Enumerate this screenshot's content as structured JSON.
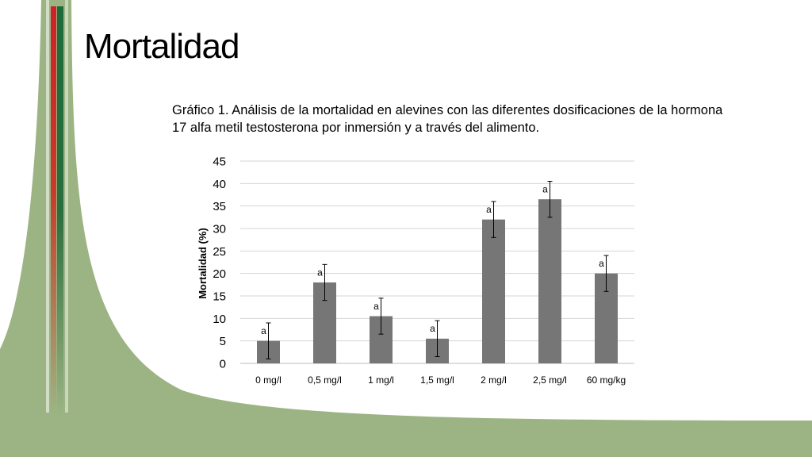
{
  "slide": {
    "title": "Mortalidad",
    "caption": "Gráfico 1. Análisis de la mortalidad en alevines con las diferentes dosificaciones de la hormona 17 alfa metil testosterona por inmersión y a través del alimento."
  },
  "colors": {
    "bar": "#767676",
    "decor_green": "#9cb483",
    "stripe_red": "#d0202a",
    "stripe_green": "#1e6b3a",
    "grid": "#d4d4d4"
  },
  "chart_data": {
    "type": "bar",
    "title": "",
    "xlabel": "",
    "ylabel": "Mortalidad (%)",
    "ylim": [
      0,
      45
    ],
    "yticks": [
      0,
      5,
      10,
      15,
      20,
      25,
      30,
      35,
      40,
      45
    ],
    "grid": true,
    "categories": [
      "0 mg/l",
      "0,5 mg/l",
      "1 mg/l",
      "1,5 mg/l",
      "2 mg/l",
      "2,5 mg/l",
      "60 mg/kg"
    ],
    "values": [
      5,
      18,
      10.5,
      5.5,
      32,
      36.5,
      20
    ],
    "error_low": [
      1,
      14,
      6.5,
      1.5,
      28,
      32.5,
      16
    ],
    "error_high": [
      9,
      22,
      14.5,
      9.5,
      36,
      40.5,
      24
    ],
    "annotations": [
      "a",
      "a",
      "a",
      "a",
      "a",
      "a",
      "a"
    ]
  }
}
